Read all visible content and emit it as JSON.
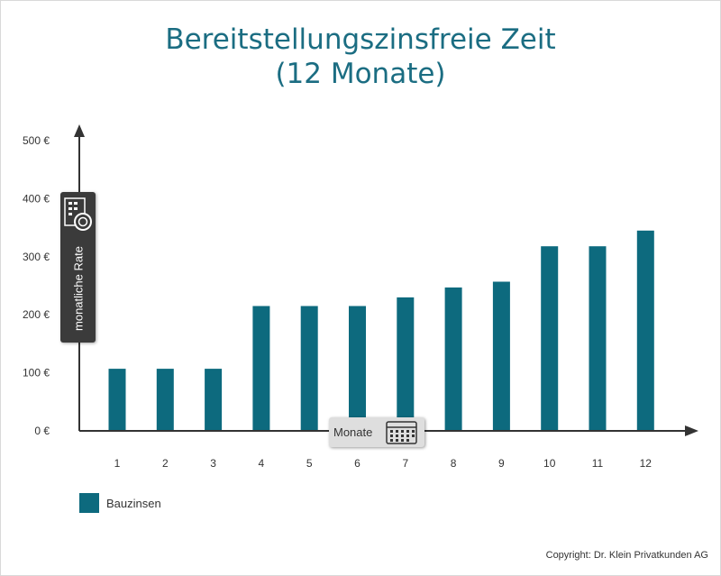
{
  "title_line1": "Bereitstellungszinsfreie Zeit",
  "title_line2": "(12 Monate)",
  "copyright": "Copyright: Dr. Klein Privatkunden AG",
  "colors": {
    "bar": "#0d6a7e",
    "title": "#1b6d82",
    "axis": "#333333"
  },
  "chart_data": {
    "type": "bar",
    "categories": [
      "1",
      "2",
      "3",
      "4",
      "5",
      "6",
      "7",
      "8",
      "9",
      "10",
      "11",
      "12"
    ],
    "series": [
      {
        "name": "Bauzinsen",
        "values": [
          107,
          107,
          107,
          215,
          215,
          215,
          230,
          247,
          257,
          318,
          318,
          345
        ]
      }
    ],
    "xlabel": "Monate",
    "ylabel": "monatliche Rate",
    "ylim": [
      0,
      500
    ],
    "yticks": [
      "0 €",
      "100 €",
      "200 €",
      "300 €",
      "400 €",
      "500 €"
    ],
    "legend": "bottom-left",
    "grid": false
  }
}
